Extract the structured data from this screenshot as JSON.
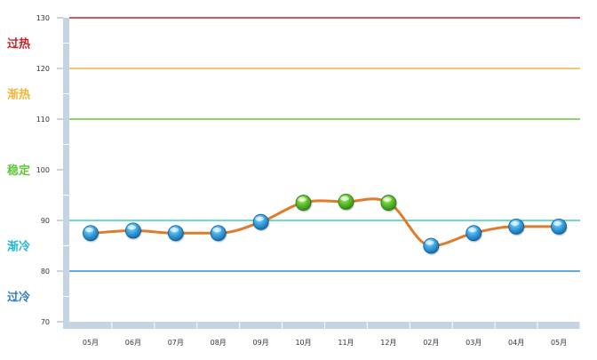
{
  "chart_data": {
    "type": "line",
    "categories": [
      "05月",
      "06月",
      "07月",
      "08月",
      "09月",
      "10月",
      "11月",
      "12月",
      "02月",
      "03月",
      "04月",
      "05月"
    ],
    "values": [
      87.5,
      88,
      87.5,
      87.5,
      89.7,
      93.5,
      93.7,
      93.5,
      85,
      87.5,
      88.8,
      88.8
    ],
    "point_status": [
      "cold",
      "cold",
      "cold",
      "cold",
      "cold",
      "stable",
      "stable",
      "stable",
      "cold",
      "cold",
      "cold",
      "cold"
    ],
    "ylim": [
      70,
      130
    ],
    "yticks": [
      "70",
      "80",
      "90",
      "100",
      "110",
      "120",
      "130"
    ],
    "grid": false,
    "line_color": "#e07b2c",
    "reference_lines": [
      {
        "value": 130,
        "color": "#c0262c"
      },
      {
        "value": 120,
        "color": "#f3b63a"
      },
      {
        "value": 110,
        "color": "#62c63a"
      },
      {
        "value": 90,
        "color": "#3fcfb0"
      },
      {
        "value": 80,
        "color": "#2f8fd1"
      }
    ],
    "zones": [
      {
        "label": "过热",
        "value": 125,
        "color": "#c0262c"
      },
      {
        "label": "渐热",
        "value": 115,
        "color": "#f3b63a"
      },
      {
        "label": "稳定",
        "value": 100,
        "color": "#62c63a"
      },
      {
        "label": "渐冷",
        "value": 85,
        "color": "#23b7d8"
      },
      {
        "label": "过冷",
        "value": 75,
        "color": "#2f7fc1"
      }
    ]
  }
}
